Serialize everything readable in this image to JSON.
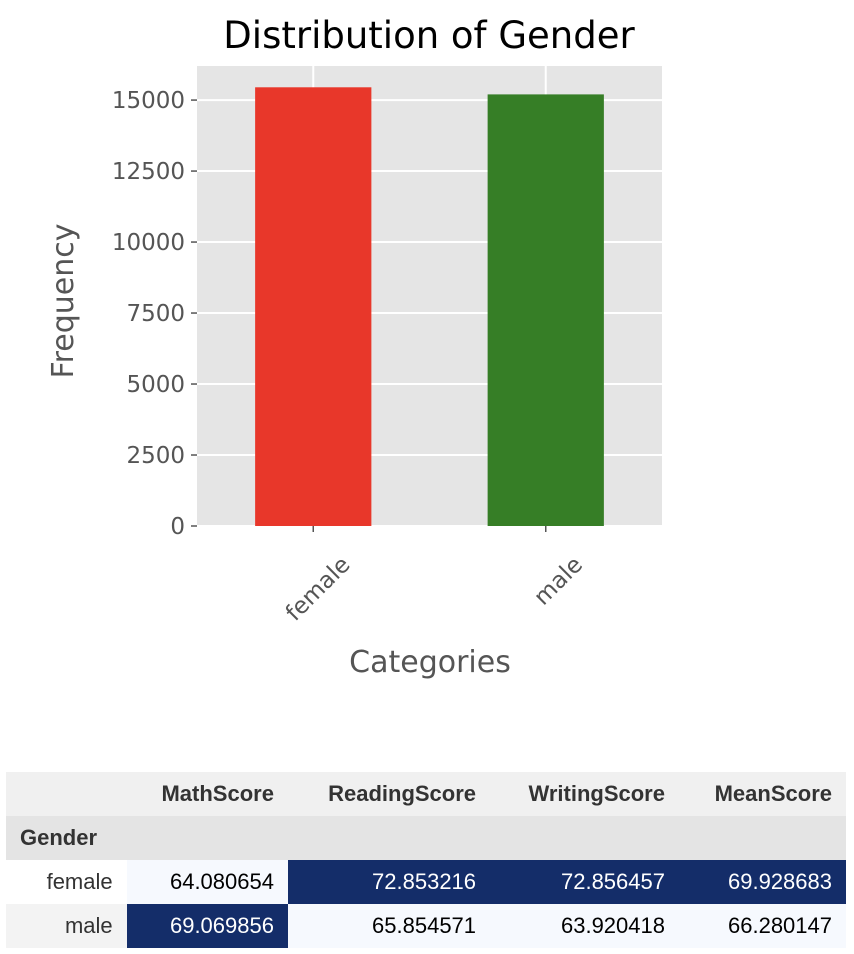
{
  "chart_data": {
    "type": "bar",
    "title": "Distribution of Gender",
    "xlabel": "Categories",
    "ylabel": "Frequency",
    "categories": [
      "female",
      "male"
    ],
    "values": [
      15450,
      15200
    ],
    "colors": [
      "#e8372a",
      "#367e26"
    ],
    "ylim": [
      0,
      16200
    ],
    "yticks": [
      0,
      2500,
      5000,
      7500,
      10000,
      12500,
      15000
    ],
    "grid": true,
    "style": "ggplot",
    "background": "#e5e5e5"
  },
  "table": {
    "index_name": "Gender",
    "columns": [
      "MathScore",
      "ReadingScore",
      "WritingScore",
      "MeanScore"
    ],
    "rows": [
      {
        "label": "female",
        "values": [
          "64.080654",
          "72.853216",
          "72.856457",
          "69.928683"
        ],
        "highlight": [
          false,
          true,
          true,
          true
        ]
      },
      {
        "label": "male",
        "values": [
          "69.069856",
          "65.854571",
          "63.920418",
          "66.280147"
        ],
        "highlight": [
          true,
          false,
          false,
          false
        ]
      }
    ],
    "highlight_bg": "#142d69",
    "highlight_fg": "#ffffff",
    "low_bg": "#f6f9fe",
    "low_fg": "#000000"
  }
}
